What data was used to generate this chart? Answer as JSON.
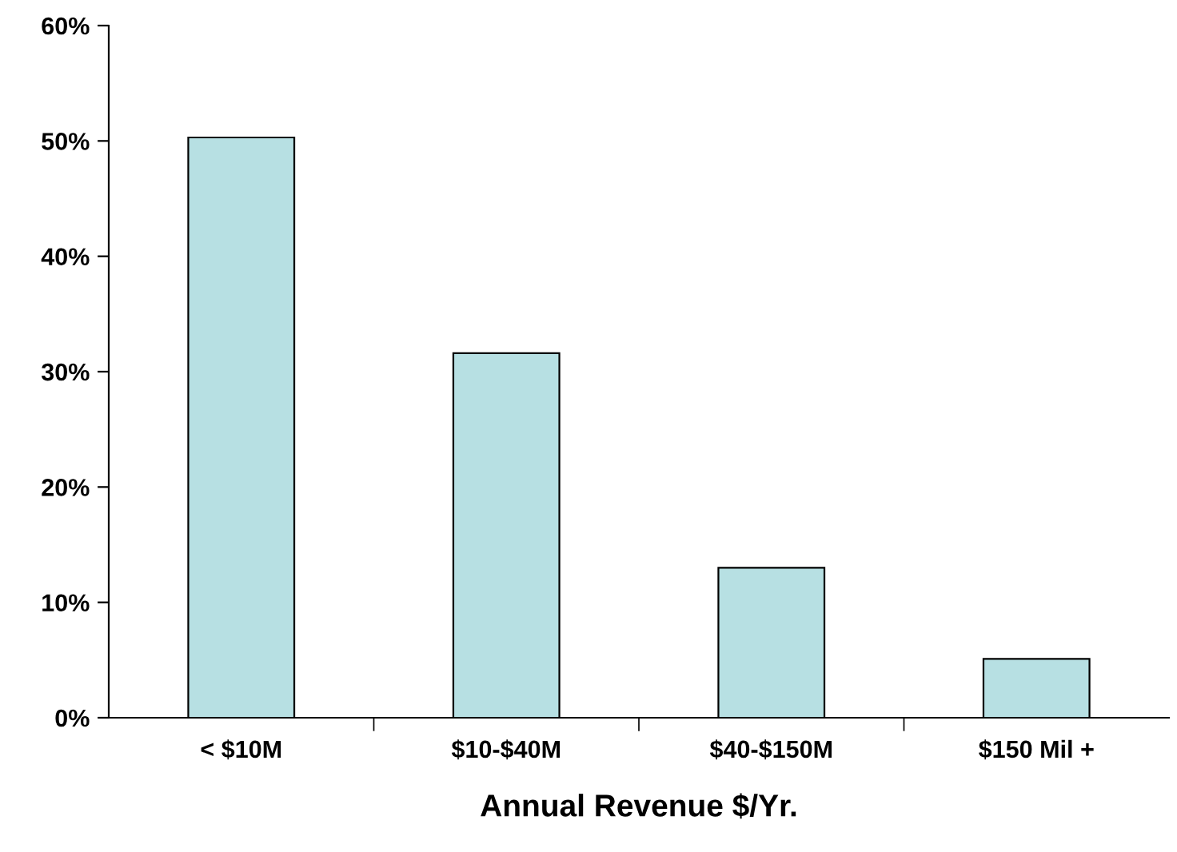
{
  "chart_data": {
    "type": "bar",
    "xlabel": "Annual Revenue $/Yr.",
    "categories": [
      "< $10M",
      "$10-$40M",
      "$40-$150M",
      "$150 Mil +"
    ],
    "values": [
      50.3,
      31.6,
      13.0,
      5.1
    ],
    "color": "#b7e0e3",
    "ylim": [
      0,
      60
    ],
    "yticks": [
      {
        "value": 0,
        "label": "0%"
      },
      {
        "value": 10,
        "label": "10%"
      },
      {
        "value": 20,
        "label": "20%"
      },
      {
        "value": 30,
        "label": "30%"
      },
      {
        "value": 40,
        "label": "40%"
      },
      {
        "value": 50,
        "label": "50%"
      },
      {
        "value": 60,
        "label": "60%"
      }
    ],
    "grid": false,
    "legend": false
  }
}
